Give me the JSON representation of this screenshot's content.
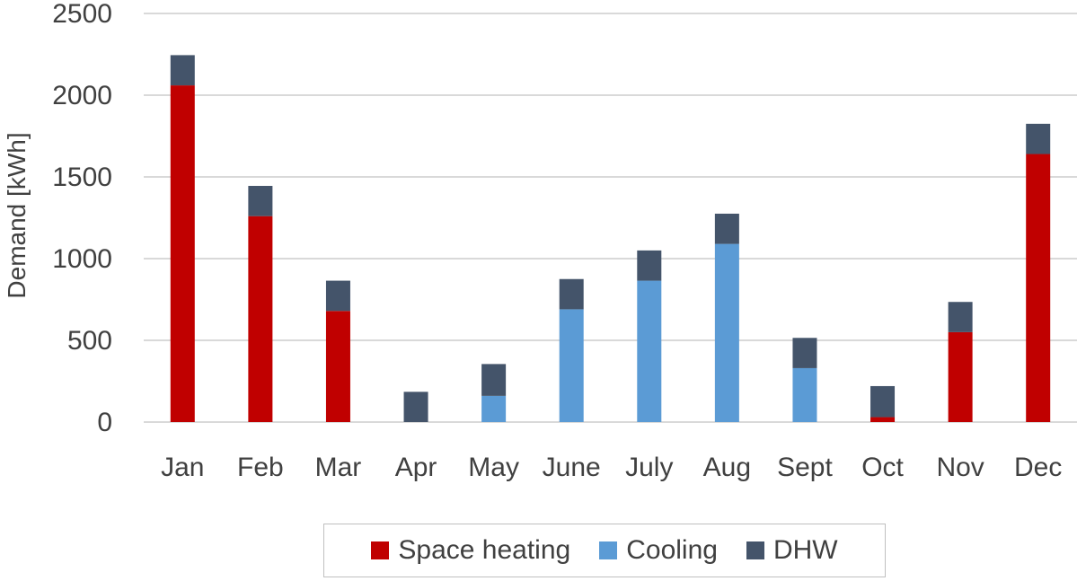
{
  "chart_data": {
    "type": "bar",
    "stacked": true,
    "categories": [
      "Jan",
      "Feb",
      "Mar",
      "Apr",
      "May",
      "June",
      "July",
      "Aug",
      "Sept",
      "Oct",
      "Nov",
      "Dec"
    ],
    "series": [
      {
        "name": "Space heating",
        "color": "#c00000",
        "values": [
          2060,
          1260,
          680,
          0,
          0,
          0,
          0,
          0,
          0,
          30,
          550,
          1640
        ]
      },
      {
        "name": "Cooling",
        "color": "#5b9bd5",
        "values": [
          0,
          0,
          0,
          0,
          160,
          690,
          865,
          1090,
          330,
          0,
          0,
          0
        ]
      },
      {
        "name": "DHW",
        "color": "#44546a",
        "values": [
          185,
          185,
          185,
          185,
          195,
          185,
          185,
          185,
          185,
          190,
          185,
          185
        ]
      }
    ],
    "title": "",
    "xlabel": "",
    "ylabel": "Demand [kWh]",
    "ylim": [
      0,
      2500
    ],
    "yticks": [
      0,
      500,
      1000,
      1500,
      2000,
      2500
    ],
    "grid": true,
    "legend_position": "bottom"
  }
}
